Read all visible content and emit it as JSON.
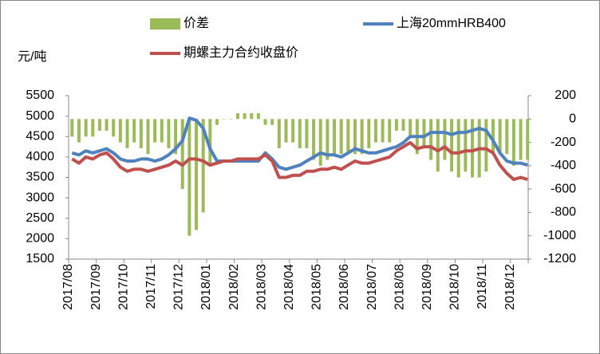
{
  "chart_data": {
    "type": "bar-line",
    "y_label": "元/吨",
    "categories": [
      "2017/08",
      null,
      null,
      null,
      "2017/09",
      null,
      null,
      null,
      "2017/10",
      null,
      null,
      null,
      "2017/11",
      null,
      null,
      null,
      "2017/12",
      null,
      null,
      null,
      "2018/01",
      null,
      null,
      null,
      "2018/02",
      null,
      null,
      null,
      "2018/03",
      null,
      null,
      null,
      "2018/04",
      null,
      null,
      null,
      "2018/05",
      null,
      null,
      null,
      "2018/06",
      null,
      null,
      null,
      "2018/07",
      null,
      null,
      null,
      "2018/08",
      null,
      null,
      null,
      "2018/09",
      null,
      null,
      null,
      "2018/10",
      null,
      null,
      null,
      "2018/11",
      null,
      null,
      null,
      "2018/12",
      null,
      null
    ],
    "series": [
      {
        "name": "价差",
        "type": "bar",
        "axis": "y2",
        "color": "#9bbb59",
        "values": [
          -150,
          -200,
          -150,
          -150,
          -100,
          -100,
          -150,
          -200,
          -250,
          -200,
          -250,
          -300,
          -200,
          -200,
          -250,
          -300,
          -600,
          -1000,
          -950,
          -800,
          -400,
          -50,
          0,
          0,
          50,
          50,
          50,
          50,
          -50,
          -50,
          -250,
          -200,
          -200,
          -250,
          -250,
          -350,
          -400,
          -350,
          -300,
          -300,
          -300,
          -300,
          -300,
          -250,
          -200,
          -200,
          -200,
          -100,
          -100,
          -150,
          -300,
          -250,
          -350,
          -450,
          -350,
          -450,
          -500,
          -450,
          -500,
          -500,
          -450,
          -300,
          -300,
          -300,
          -400,
          -350,
          -350
        ]
      },
      {
        "name": "上海20mmHRB400",
        "type": "line",
        "color": "#4f81bd",
        "values": [
          4100,
          4050,
          4150,
          4100,
          4150,
          4200,
          4100,
          3950,
          3900,
          3900,
          3950,
          3950,
          3900,
          3950,
          4050,
          4200,
          4400,
          4950,
          4900,
          4700,
          4200,
          3900,
          3900,
          3900,
          3900,
          3900,
          3900,
          3900,
          4100,
          3950,
          3750,
          3700,
          3750,
          3800,
          3900,
          4000,
          4100,
          4050,
          4050,
          4000,
          4100,
          4200,
          4150,
          4100,
          4100,
          4150,
          4200,
          4250,
          4350,
          4500,
          4500,
          4500,
          4600,
          4600,
          4600,
          4550,
          4600,
          4600,
          4650,
          4700,
          4650,
          4400,
          4100,
          3900,
          3850,
          3850,
          3800
        ]
      },
      {
        "name": "期螺主力合约收盘价",
        "type": "line",
        "color": "#c0504d",
        "values": [
          3950,
          3850,
          4000,
          3950,
          4050,
          4100,
          3950,
          3750,
          3650,
          3700,
          3700,
          3650,
          3700,
          3750,
          3800,
          3900,
          3800,
          3950,
          3950,
          3900,
          3800,
          3850,
          3900,
          3900,
          3950,
          3950,
          3950,
          3950,
          4050,
          3900,
          3500,
          3500,
          3550,
          3550,
          3650,
          3650,
          3700,
          3700,
          3750,
          3700,
          3800,
          3900,
          3850,
          3850,
          3900,
          3950,
          4000,
          4150,
          4250,
          4350,
          4200,
          4250,
          4250,
          4150,
          4250,
          4100,
          4100,
          4150,
          4150,
          4200,
          4200,
          4100,
          3800,
          3600,
          3450,
          3500,
          3450
        ]
      }
    ],
    "ylim": [
      1500,
      5500
    ],
    "yticks": [
      1500,
      2000,
      2500,
      3000,
      3500,
      4000,
      4500,
      5000,
      5500
    ],
    "y2lim": [
      -1200,
      200
    ],
    "y2ticks": [
      -1200,
      -1000,
      -800,
      -600,
      -400,
      -200,
      0,
      200
    ]
  }
}
